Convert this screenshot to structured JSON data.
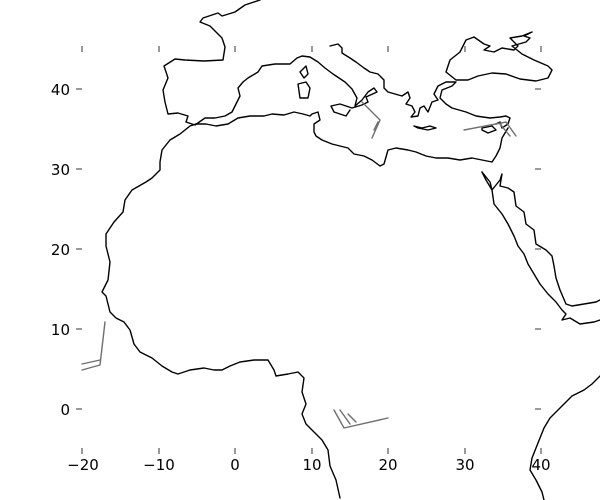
{
  "map": {
    "x_ticks": [
      "−20",
      "−10",
      "0",
      "10",
      "20",
      "30",
      "40"
    ],
    "y_ticks": [
      "40",
      "30",
      "20",
      "10",
      "0"
    ],
    "colors": {
      "coastline": "#000000",
      "wind_barbs": "#6e6e6e",
      "background": "#ffffff"
    }
  }
}
